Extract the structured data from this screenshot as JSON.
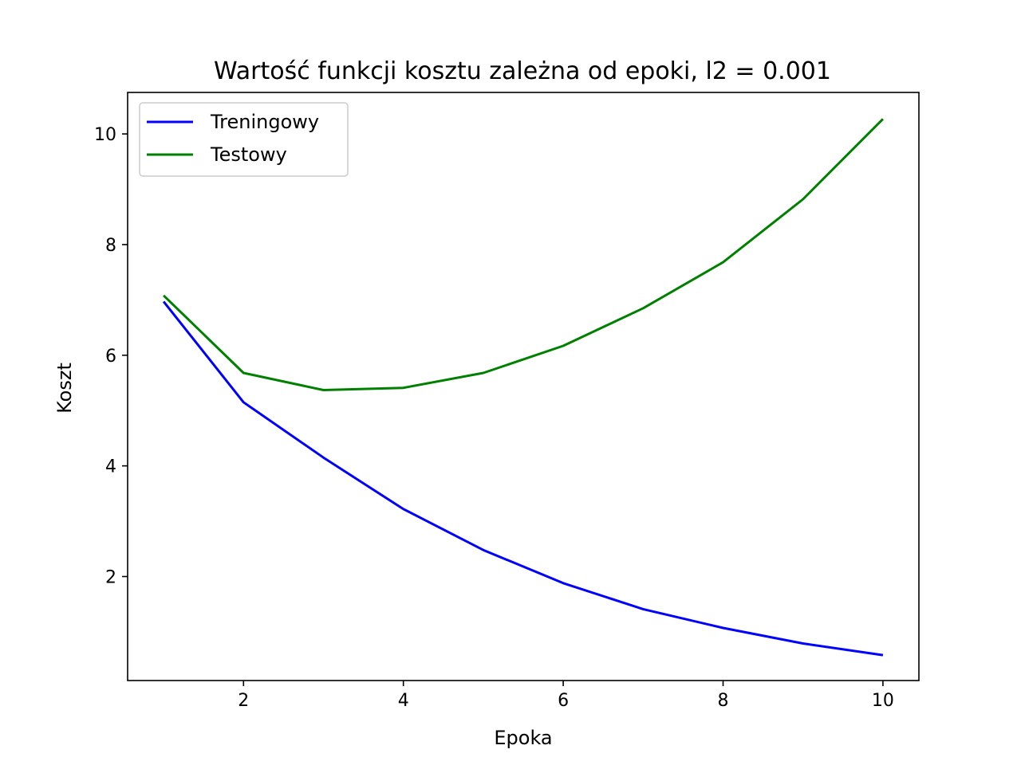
{
  "chart_data": {
    "type": "line",
    "title": "Wartość funkcji kosztu zależna od epoki, l2 = 0.001",
    "xlabel": "Epoka",
    "ylabel": "Koszt",
    "xlim": [
      0.55,
      10.45
    ],
    "ylim": [
      0.12,
      10.75
    ],
    "xticks": [
      2,
      4,
      6,
      8,
      10
    ],
    "yticks": [
      2,
      4,
      6,
      8,
      10
    ],
    "grid": false,
    "legend_position": "upper-left",
    "x": [
      1,
      2,
      3,
      4,
      5,
      6,
      7,
      8,
      9,
      10
    ],
    "series": [
      {
        "name": "Treningowy",
        "color": "#0000ff",
        "values": [
          6.97,
          5.15,
          4.15,
          3.22,
          2.48,
          1.88,
          1.41,
          1.07,
          0.79,
          0.58
        ]
      },
      {
        "name": "Testowy",
        "color": "#008000",
        "values": [
          7.08,
          5.68,
          5.37,
          5.41,
          5.68,
          6.17,
          6.85,
          7.68,
          8.82,
          10.27
        ]
      }
    ]
  }
}
